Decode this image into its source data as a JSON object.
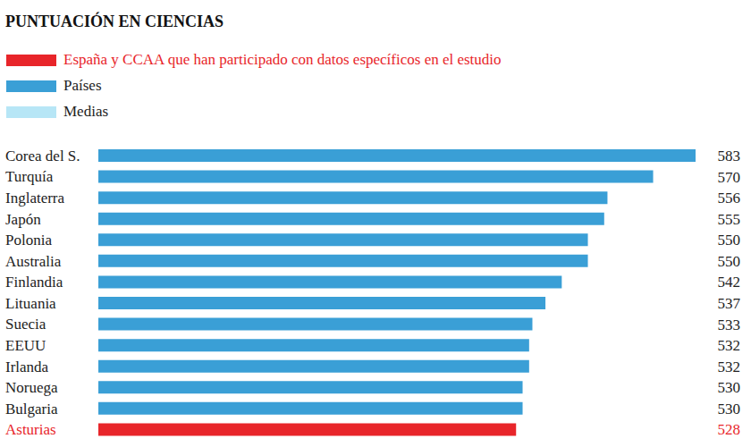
{
  "chart_data": {
    "type": "bar",
    "title": "PUNTUACIÓN EN CIENCIAS",
    "orientation": "horizontal",
    "stacked": true,
    "data_labels": true,
    "tick_labels": "y",
    "grid": false,
    "legend": "top left",
    "categories": [
      "Corea del S.",
      "Turquía",
      "Inglaterra",
      "Japón",
      "Polonia",
      "Australia",
      "Finlandia",
      "Lituania",
      "Suecia",
      "EEUU",
      "Irlanda",
      "Noruega",
      "Bulgaria",
      "Asturias"
    ],
    "xlim": [
      400,
      583
    ],
    "series": [
      {
        "name": "España y CCAA que han participado con datos específicos en el estudio",
        "color": "#e8252a",
        "values": [
          null,
          null,
          null,
          null,
          null,
          null,
          null,
          null,
          null,
          null,
          null,
          null,
          null,
          528
        ]
      },
      {
        "name": "Países",
        "color": "#3a9fd6",
        "values": [
          583,
          570,
          556,
          555,
          550,
          550,
          542,
          537,
          533,
          532,
          532,
          530,
          530,
          null
        ]
      },
      {
        "name": "Medias",
        "color": "#b7e6f6",
        "values": [
          null,
          null,
          null,
          null,
          null,
          null,
          null,
          null,
          null,
          null,
          null,
          null,
          null,
          null
        ]
      }
    ]
  }
}
